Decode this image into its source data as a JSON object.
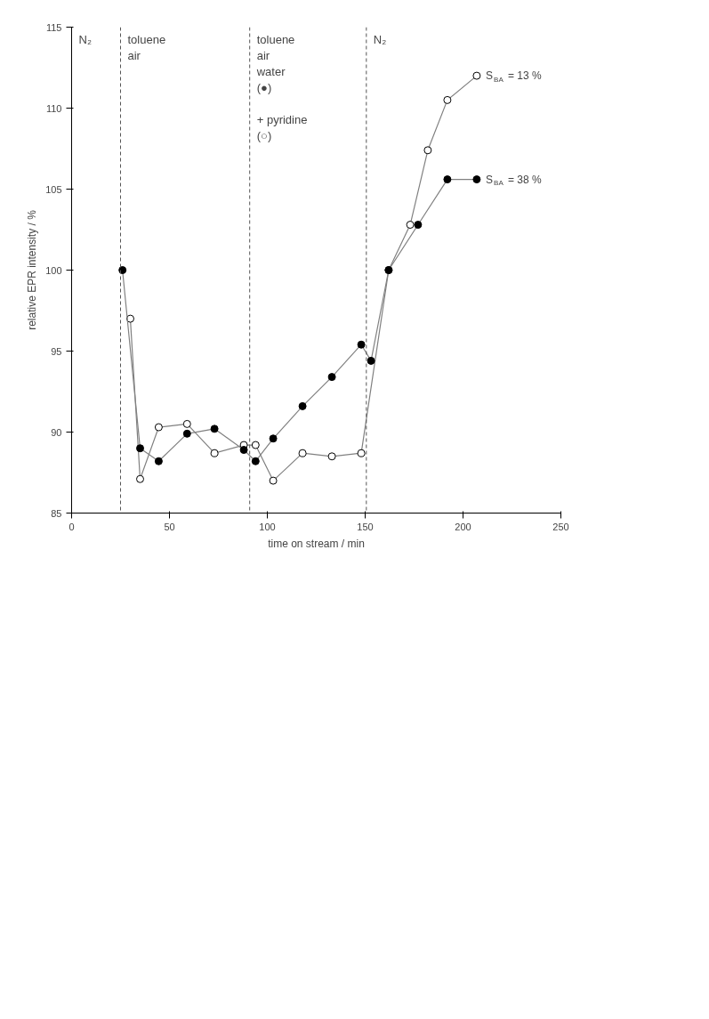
{
  "chart_data": {
    "type": "line",
    "xlabel": "time on stream / min",
    "ylabel": "relative EPR intensity / %",
    "xlim": [
      0,
      250
    ],
    "ylim": [
      85,
      115
    ],
    "xticks": [
      0,
      50,
      100,
      150,
      200,
      250
    ],
    "yticks": [
      85,
      90,
      95,
      100,
      105,
      110,
      115
    ],
    "grid": false,
    "legend": false,
    "marker": "circle",
    "line_style": "solid",
    "series": [
      {
        "name": "S$_{BA}$ = 13 %",
        "color": "#ffffff",
        "x": [
          30,
          35,
          44.5,
          59,
          73,
          88,
          94,
          103,
          118,
          133,
          148,
          162,
          173,
          182,
          192,
          207
        ],
        "values": [
          97,
          87.1,
          90.3,
          90.5,
          88.7,
          89.2,
          89.2,
          87,
          88.7,
          88.5,
          88.7,
          100,
          102.8,
          107.4,
          110.5,
          112
        ]
      },
      {
        "name": "S$_{BA}$ = 38 %",
        "color": "#000000",
        "x": [
          26,
          35,
          44.5,
          59,
          73,
          88,
          94,
          103,
          118,
          133,
          148,
          153,
          162,
          177,
          192,
          207
        ],
        "values": [
          100,
          89,
          88.2,
          89.9,
          90.2,
          88.9,
          88.2,
          89.6,
          91.6,
          93.4,
          95.4,
          94.4,
          100,
          102.8,
          105.6,
          105.6
        ]
      }
    ],
    "ref_lines": [
      {
        "axis": "x",
        "value": 25,
        "line_style": "dashed"
      },
      {
        "axis": "x",
        "value": 91,
        "line_style": "dashed"
      },
      {
        "axis": "x",
        "value": 150.6,
        "line_style": "dashed"
      }
    ],
    "annotations": [
      "N₂",
      "toluene\nair",
      "toluene\nair\nwater\n(●)\n\n+ pyridine\n(○)",
      "N₂"
    ]
  }
}
